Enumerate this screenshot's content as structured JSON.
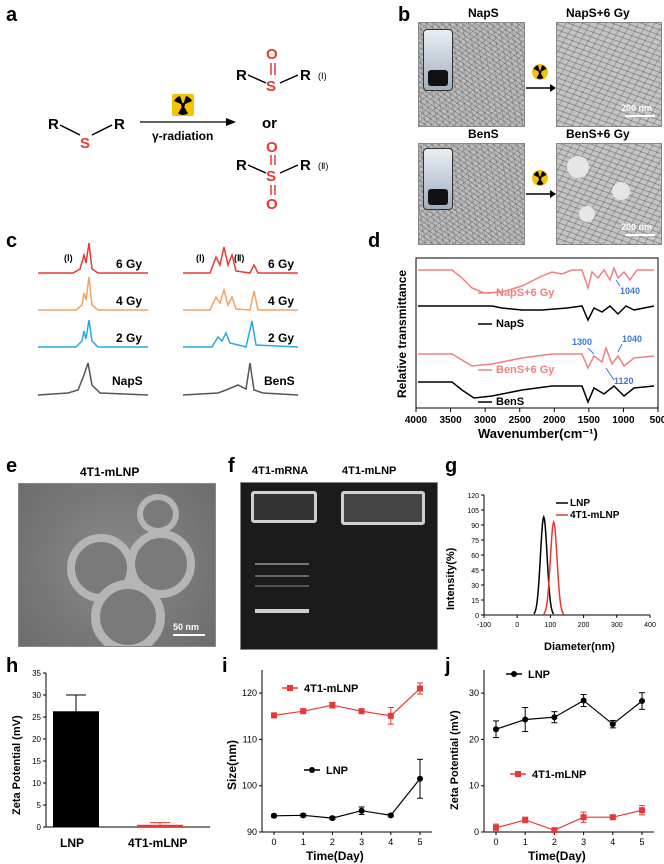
{
  "panels": {
    "a": "a",
    "b": "b",
    "c": "c",
    "d": "d",
    "e": "e",
    "f": "f",
    "g": "g",
    "h": "h",
    "i": "i",
    "j": "j"
  },
  "panel_a": {
    "r": "R",
    "s": "S",
    "o": "O",
    "arrow_label": "γ-radiation",
    "or": "or",
    "product1": "(Ⅰ)",
    "product2": "(Ⅱ)",
    "colors": {
      "sulfur": "#e53935",
      "oxygen": "#e53935"
    }
  },
  "panel_b": {
    "napS": "NapS",
    "napS6": "NapS+6 Gy",
    "benS": "BenS",
    "benS6": "BenS+6 Gy",
    "scale": "200 nm",
    "icon": "radiation-icon"
  },
  "panel_c": {
    "left": {
      "marker": "(Ⅰ)",
      "labels": [
        "6 Gy",
        "4 Gy",
        "2 Gy",
        "NapS"
      ]
    },
    "right": {
      "marker1": "(Ⅰ)",
      "marker2": "(Ⅱ)",
      "labels": [
        "6 Gy",
        "4 Gy",
        "2 Gy",
        "BenS"
      ]
    },
    "colors": [
      "#e53935",
      "#f4a261",
      "#29a8e0",
      "#555555"
    ]
  },
  "chart_data": [
    {
      "id": "d",
      "type": "line",
      "xlabel": "Wavenumber(cm⁻¹)",
      "ylabel": "Relative transmittance",
      "xlim": [
        4000,
        500
      ],
      "x_ticks": [
        "4000",
        "3500",
        "3000",
        "2500",
        "2000",
        "1500",
        "1000",
        "500"
      ],
      "series": [
        {
          "name": "NapS+6 Gy",
          "color": "#f08080"
        },
        {
          "name": "NapS",
          "color": "#000000"
        },
        {
          "name": "BenS+6 Gy",
          "color": "#f08080"
        },
        {
          "name": "BenS",
          "color": "#000000"
        }
      ],
      "annotations": [
        "1040",
        "1300",
        "1040",
        "1120"
      ]
    },
    {
      "id": "g",
      "type": "line",
      "xlabel": "Diameter(nm)",
      "ylabel": "Intensity(%)",
      "xlim": [
        -100,
        400
      ],
      "ylim": [
        0,
        120
      ],
      "x_ticks": [
        "-100",
        "0",
        "100",
        "200",
        "300",
        "400"
      ],
      "y_ticks": [
        "0",
        "15",
        "30",
        "45",
        "60",
        "75",
        "90",
        "105",
        "120"
      ],
      "series": [
        {
          "name": "LNP",
          "color": "#000000",
          "peak_x": 80,
          "peak_y": 98
        },
        {
          "name": "4T1-mLNP",
          "color": "#e53935",
          "peak_x": 110,
          "peak_y": 93
        }
      ]
    },
    {
      "id": "h",
      "type": "bar",
      "ylabel": "Zeta Potential (mV)",
      "ylim": [
        0,
        35
      ],
      "y_ticks": [
        "0",
        "5",
        "10",
        "15",
        "20",
        "25",
        "30",
        "35"
      ],
      "categories": [
        "LNP",
        "4T1-mLNP"
      ],
      "values": [
        26.3,
        0.5
      ],
      "errors": [
        3.7,
        0.5
      ],
      "colors": [
        "#000000",
        "#e53935"
      ]
    },
    {
      "id": "i",
      "type": "line",
      "xlabel": "Time(Day)",
      "ylabel": "Size(nm)",
      "ylim": [
        90,
        125
      ],
      "y_ticks": [
        "90",
        "100",
        "110",
        "120"
      ],
      "x": [
        0,
        1,
        2,
        3,
        4,
        5
      ],
      "series": [
        {
          "name": "4T1-mLNP",
          "color": "#e53935",
          "values": [
            115.2,
            116.1,
            117.4,
            116.1,
            115.1,
            121.0
          ],
          "errors": [
            0.5,
            0.5,
            0.6,
            0.5,
            1.8,
            1.2
          ]
        },
        {
          "name": "LNP",
          "color": "#000000",
          "values": [
            93.5,
            93.6,
            93.0,
            94.6,
            93.6,
            101.5
          ],
          "errors": [
            0.3,
            0.3,
            0.3,
            0.8,
            0.3,
            4.2
          ]
        }
      ]
    },
    {
      "id": "j",
      "type": "line",
      "xlabel": "Time(Day)",
      "ylabel": "Zeta Potential (mV)",
      "ylim": [
        0,
        35
      ],
      "y_ticks": [
        "0",
        "10",
        "20",
        "30"
      ],
      "x": [
        0,
        1,
        2,
        3,
        4,
        5
      ],
      "series": [
        {
          "name": "LNP",
          "color": "#000000",
          "values": [
            22.2,
            24.3,
            24.8,
            28.4,
            23.3,
            28.3
          ],
          "errors": [
            1.8,
            2.6,
            1.2,
            1.3,
            0.8,
            1.8
          ]
        },
        {
          "name": "4T1-mLNP",
          "color": "#e53935",
          "values": [
            0.9,
            2.6,
            0.4,
            3.2,
            3.2,
            4.7
          ],
          "errors": [
            0.8,
            0.6,
            0.3,
            1.1,
            0.3,
            1.0
          ]
        }
      ]
    }
  ],
  "panel_e": {
    "title": "4T1-mLNP",
    "scale": "50 nm"
  },
  "panel_f": {
    "lane1": "4T1-mRNA",
    "lane2": "4T1-mLNP"
  }
}
